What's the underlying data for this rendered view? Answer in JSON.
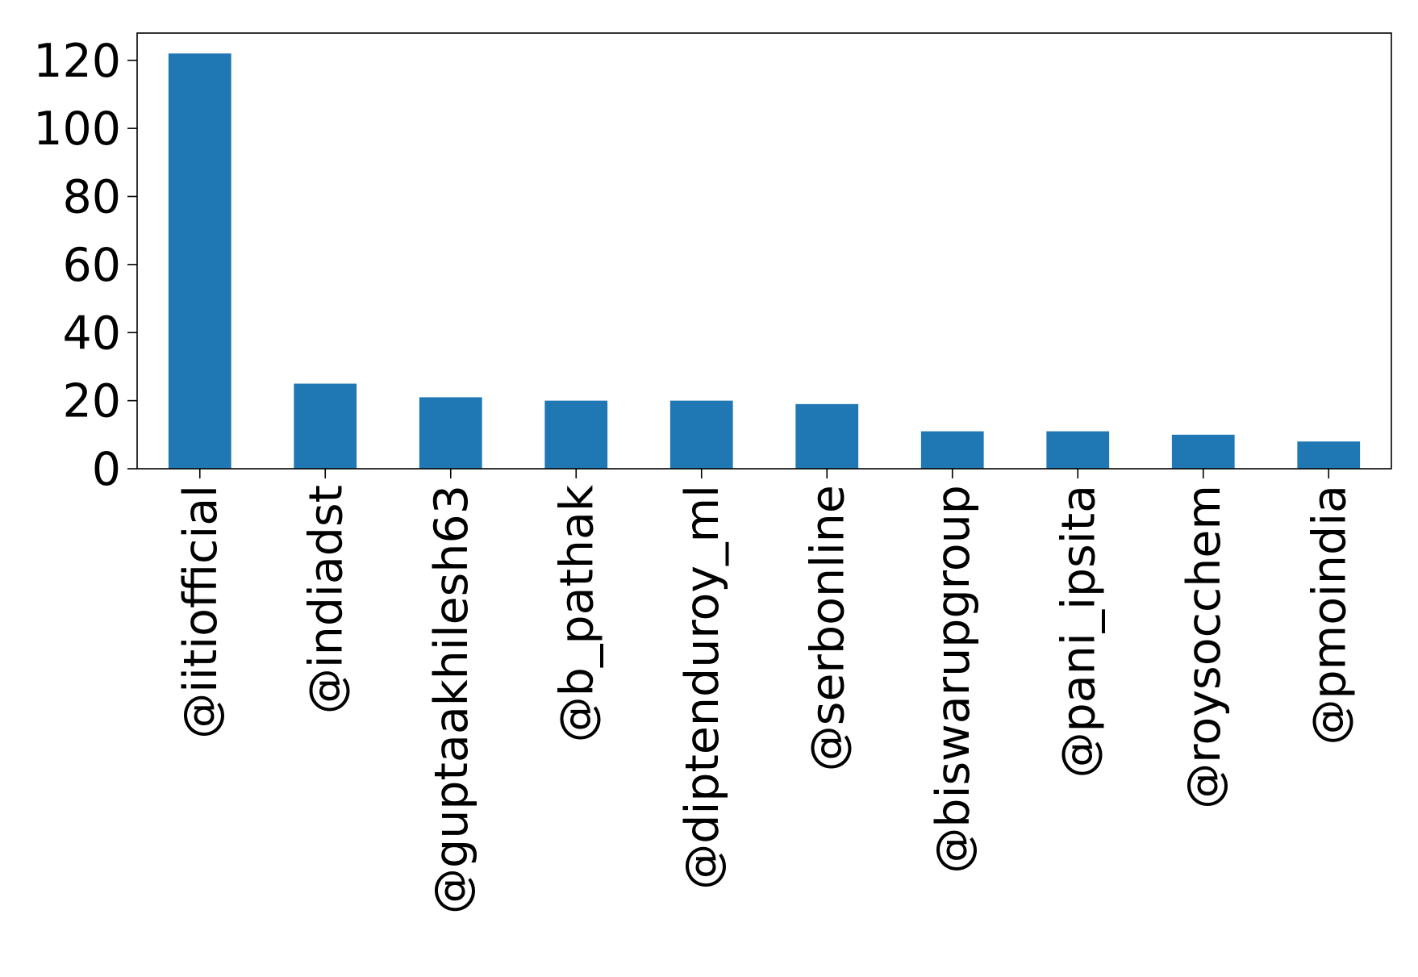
{
  "chart_data": {
    "type": "bar",
    "title": "",
    "xlabel": "",
    "ylabel": "",
    "categories": [
      "@iitiofficial",
      "@indiadst",
      "@guptaakhilesh63",
      "@b_pathak",
      "@diptenduroy_ml",
      "@serbonline",
      "@biswarupgroup",
      "@pani_ipsita",
      "@roysocchem",
      "@pmoindia"
    ],
    "values": [
      122,
      25,
      21,
      20,
      20,
      19,
      11,
      11,
      10,
      8
    ],
    "ylim": [
      0,
      128
    ],
    "yticks": [
      0,
      20,
      40,
      60,
      80,
      100,
      120
    ],
    "ytick_labels": [
      "0",
      "20",
      "40",
      "60",
      "80",
      "100",
      "120"
    ],
    "bar_color": "#1f77b4",
    "grid": false,
    "legend": "none"
  }
}
